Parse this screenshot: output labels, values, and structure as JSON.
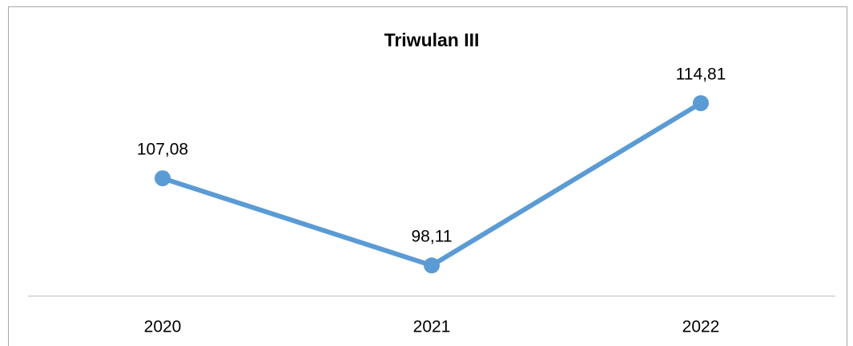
{
  "chart_data": {
    "type": "line",
    "title": "Triwulan III",
    "categories": [
      "2020",
      "2021",
      "2022"
    ],
    "series": [
      {
        "color": "#5b9bd5",
        "values": [
          107.08,
          98.11,
          114.81
        ],
        "value_labels": [
          "107,08",
          "98,11",
          "114,81"
        ]
      }
    ],
    "ylim": [
      95,
      120
    ]
  }
}
